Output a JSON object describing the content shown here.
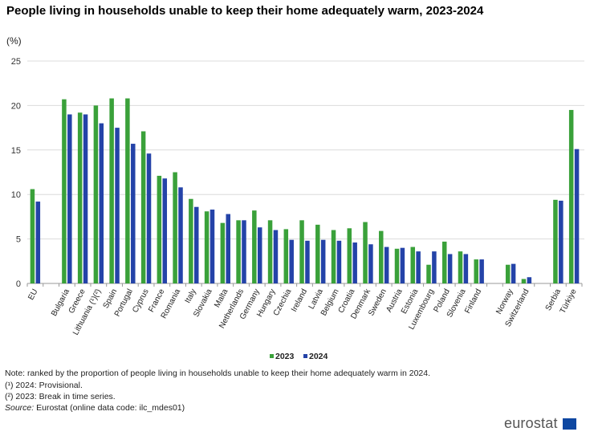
{
  "chart_data": {
    "type": "bar",
    "title": "People living in households unable to keep their home adequately warm, 2023-2024",
    "ylabel": "(%)",
    "ylim": [
      0,
      25
    ],
    "yticks": [
      0,
      5,
      10,
      15,
      20,
      25
    ],
    "grid": true,
    "legend_position": "bottom",
    "categories": [
      "EU",
      "",
      "Bulgaria",
      "Greece",
      "Lithuania (¹)(²)",
      "Spain",
      "Portugal",
      "Cyprus",
      "France",
      "Romania",
      "Italy",
      "Slovakia",
      "Malta",
      "Netherlands",
      "Germany",
      "Hungary",
      "Czechia",
      "Ireland",
      "Latvia",
      "Belgium",
      "Croatia",
      "Denmark",
      "Sweden",
      "Austria",
      "Estonia",
      "Luxembourg",
      "Poland",
      "Slovenia",
      "Finland",
      "",
      "Norway",
      "Switzerland",
      "",
      "Serbia",
      "Türkiye"
    ],
    "series": [
      {
        "name": "2023",
        "color": "#3aa13a",
        "values": [
          10.6,
          null,
          20.7,
          19.2,
          20.0,
          20.8,
          20.8,
          17.1,
          12.1,
          12.5,
          9.5,
          8.1,
          6.8,
          7.1,
          8.2,
          7.1,
          6.1,
          7.1,
          6.6,
          6.0,
          6.2,
          6.9,
          5.9,
          3.9,
          4.1,
          2.1,
          4.7,
          3.6,
          2.7,
          null,
          2.1,
          0.5,
          null,
          9.4,
          19.5
        ]
      },
      {
        "name": "2024",
        "color": "#2443a8",
        "values": [
          9.2,
          null,
          19.0,
          19.0,
          18.0,
          17.5,
          15.7,
          14.6,
          11.8,
          10.8,
          8.6,
          8.3,
          7.8,
          7.1,
          6.3,
          6.0,
          4.9,
          4.8,
          4.9,
          4.8,
          4.6,
          4.4,
          4.1,
          4.0,
          3.6,
          3.6,
          3.3,
          3.3,
          2.7,
          null,
          2.2,
          0.7,
          null,
          9.3,
          15.1
        ]
      }
    ]
  },
  "notes": {
    "note": "Note: ranked by the proportion of people living in households unable to keep their home adequately warm in 2024.",
    "fn1": "(¹) 2024: Provisional.",
    "fn2": "(²) 2023: Break in time series.",
    "source_label": "Source:",
    "source_text": " Eurostat (online data code: ilc_mdes01)"
  },
  "logo": "eurostat"
}
